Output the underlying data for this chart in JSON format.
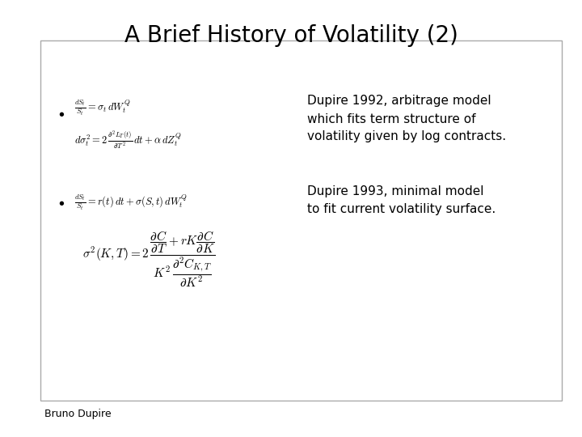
{
  "title": "A Brief History of Volatility (2)",
  "title_fontsize": 20,
  "title_fontweight": "normal",
  "bg_color": "#ffffff",
  "box_edge_color": "#aaaaaa",
  "text_color": "#000000",
  "footer_text": "Bruno Dupire",
  "footer_fontsize": 9,
  "bullet1_eq1": "$\\frac{dS_t}{S_t} = \\sigma_t\\, dW_t^Q$",
  "bullet1_eq2": "$d\\sigma_t^2 = 2\\,\\frac{\\partial^2 L_T(t)}{\\partial T^2}\\,dt + \\alpha\\, dZ_t^Q$",
  "bullet1_text_line1": "Dupire 1992, arbitrage model",
  "bullet1_text_line2": "which fits term structure of",
  "bullet1_text_line3": "volatility given by log contracts.",
  "bullet2_eq1": "$\\frac{dS_t}{S_t} = r(t)\\,dt + \\sigma(S,t)\\,dW_t^Q$",
  "bullet2_eq2": "$\\sigma^2(K,T) = 2\\,\\dfrac{\\dfrac{\\partial C}{\\partial T} + rK\\dfrac{\\partial C}{\\partial K}}{K^2\\,\\dfrac{\\partial^2 C_{K,T}}{\\partial K^2}}$",
  "bullet2_text_line1": "Dupire 1993, minimal model",
  "bullet2_text_line2": "to fit current volatility surface.",
  "eq_fontsize": 9,
  "body_text_fontsize": 11
}
